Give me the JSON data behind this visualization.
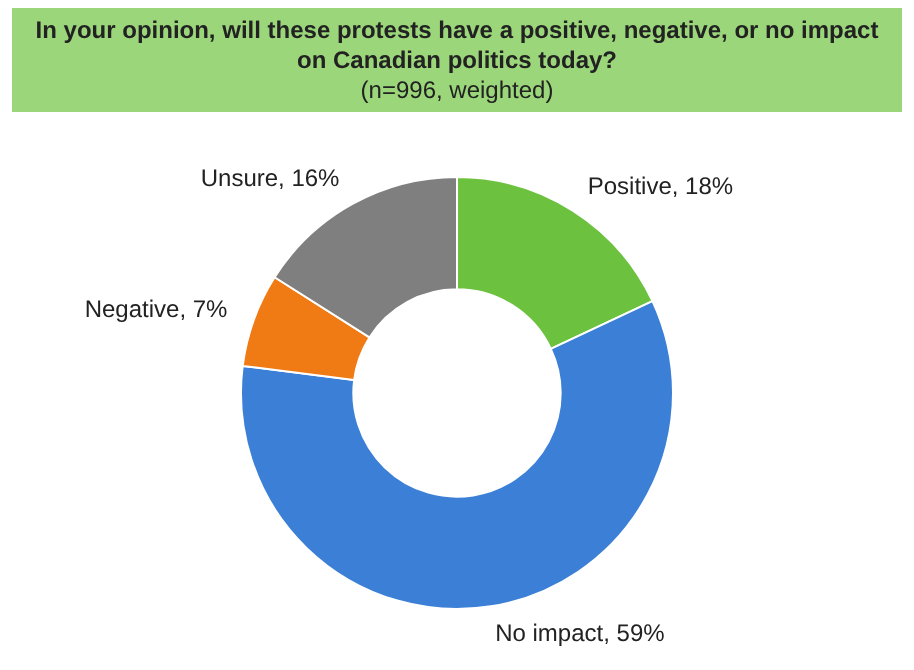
{
  "chart_data": {
    "type": "donut",
    "title": "In your opinion,  will these protests have a positive, negative, or no impact on Canadian politics today?",
    "subtitle": "(n=996, weighted)",
    "categories": [
      "Positive",
      "No impact",
      "Negative",
      "Unsure"
    ],
    "values": [
      18,
      59,
      7,
      16
    ],
    "value_labels": [
      "18%",
      "59%",
      "7%",
      "16%"
    ],
    "colors": [
      "#6cc23e",
      "#3c7fd6",
      "#f07a14",
      "#7f7f7f"
    ],
    "legend": false
  }
}
